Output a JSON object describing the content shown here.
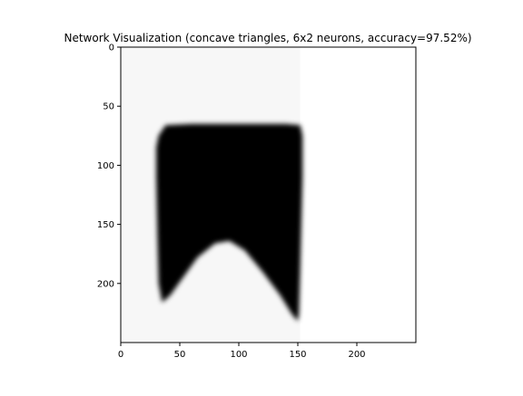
{
  "chart_data": {
    "type": "heatmap",
    "title": "Network Visualization (concave triangles, 6x2 neurons, accuracy=97.52%)",
    "xlabel": "",
    "ylabel": "",
    "xlim": [
      0,
      250
    ],
    "ylim": [
      250,
      0
    ],
    "xticks": [
      0,
      50,
      100,
      150,
      200
    ],
    "yticks": [
      0,
      50,
      100,
      150,
      200
    ],
    "grid": false,
    "colormap": "gray_r",
    "colors": {
      "high": "#000000",
      "low": "#ffffff",
      "background_left": "#f7f7f7",
      "background_right": "#ffffff"
    },
    "regions": {
      "background_left": {
        "x_end": 152,
        "value": 0.03
      },
      "shape_outline": [
        [
          32,
          75
        ],
        [
          38,
          66
        ],
        [
          60,
          65
        ],
        [
          100,
          65
        ],
        [
          140,
          65
        ],
        [
          152,
          66
        ],
        [
          154,
          75
        ],
        [
          154,
          110
        ],
        [
          153,
          150
        ],
        [
          152,
          190
        ],
        [
          151,
          225
        ],
        [
          150,
          232
        ],
        [
          145,
          226
        ],
        [
          135,
          210
        ],
        [
          120,
          190
        ],
        [
          105,
          172
        ],
        [
          92,
          164
        ],
        [
          80,
          166
        ],
        [
          65,
          178
        ],
        [
          52,
          196
        ],
        [
          42,
          210
        ],
        [
          35,
          216
        ],
        [
          32,
          200
        ],
        [
          31,
          160
        ],
        [
          30,
          110
        ],
        [
          30,
          85
        ]
      ],
      "shape_value": 1.0
    }
  }
}
